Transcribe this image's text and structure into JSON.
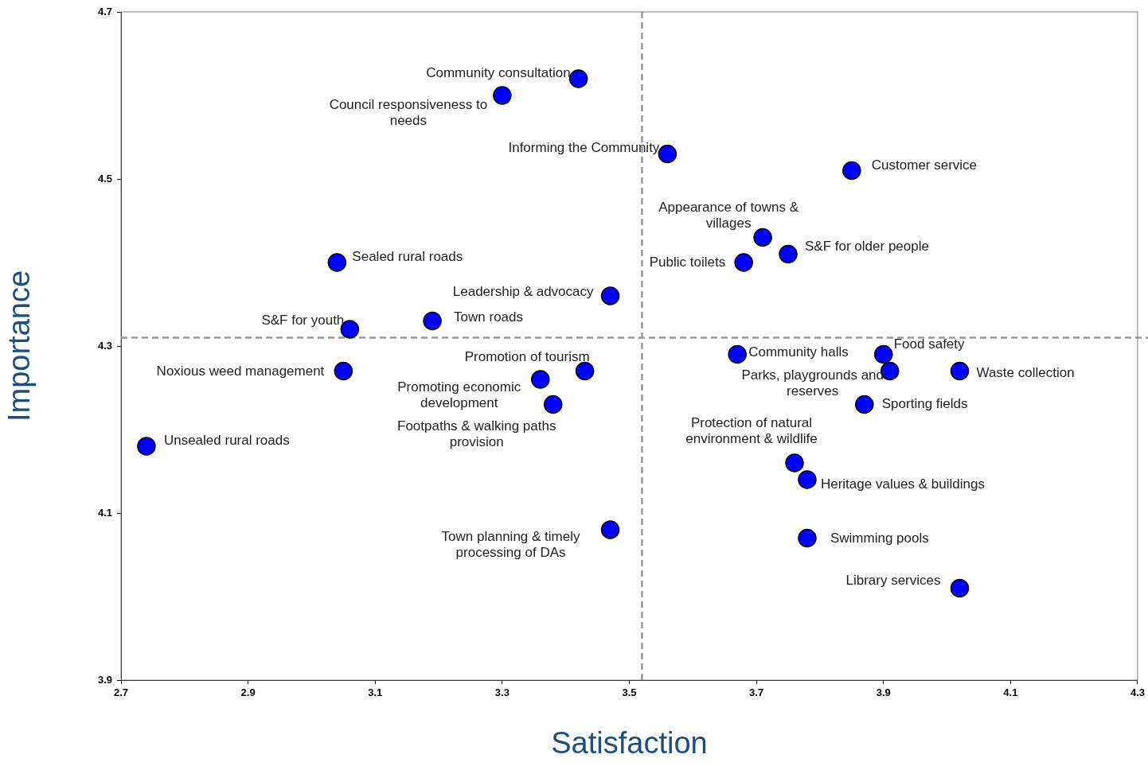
{
  "chart_data": {
    "type": "scatter",
    "xlabel": "Satisfaction",
    "ylabel": "Importance",
    "xlim": [
      2.7,
      4.3
    ],
    "xticks": [
      2.7,
      2.9,
      3.1,
      3.3,
      3.5,
      3.7,
      3.9,
      4.1,
      4.3
    ],
    "ylim": [
      3.9,
      4.7
    ],
    "yticks": [
      3.9,
      4.1,
      4.3,
      4.5,
      4.7
    ],
    "grid": false,
    "legend": false,
    "marker": "circle",
    "series": [
      {
        "color": "#0000ff",
        "x": [
          3.42,
          3.3,
          3.56,
          3.85,
          3.71,
          3.75,
          3.68,
          3.04,
          3.47,
          3.06,
          3.19,
          3.05,
          3.43,
          3.36,
          3.38,
          2.74,
          3.47,
          3.67,
          3.9,
          3.91,
          4.02,
          3.87,
          3.76,
          3.78,
          3.78,
          4.02
        ],
        "values": [
          4.62,
          4.6,
          4.53,
          4.51,
          4.43,
          4.41,
          4.4,
          4.4,
          4.36,
          4.32,
          4.33,
          4.27,
          4.27,
          4.26,
          4.23,
          4.18,
          4.08,
          4.29,
          4.29,
          4.27,
          4.27,
          4.23,
          4.16,
          4.14,
          4.07,
          4.01
        ]
      }
    ],
    "ref_lines": [
      {
        "axis": "x",
        "value": 3.52,
        "color": "#999999",
        "line_style": "dashed"
      },
      {
        "axis": "y",
        "value": 4.31,
        "color": "#999999",
        "line_style": "dashed"
      }
    ],
    "annotations": [
      {
        "text": "Community consultation",
        "x": 3.42,
        "y": 4.62
      },
      {
        "text": "Council responsiveness to needs",
        "x": 3.3,
        "y": 4.6
      },
      {
        "text": "Informing the Community",
        "x": 3.56,
        "y": 4.53
      },
      {
        "text": "Customer service",
        "x": 3.85,
        "y": 4.51
      },
      {
        "text": "Appearance of towns & villages",
        "x": 3.71,
        "y": 4.43
      },
      {
        "text": "S&F for older people",
        "x": 3.75,
        "y": 4.41
      },
      {
        "text": "Public toilets",
        "x": 3.68,
        "y": 4.4
      },
      {
        "text": "Sealed rural roads",
        "x": 3.04,
        "y": 4.4
      },
      {
        "text": "Leadership & advocacy",
        "x": 3.47,
        "y": 4.36
      },
      {
        "text": "S&F for youth",
        "x": 3.06,
        "y": 4.32
      },
      {
        "text": "Town roads",
        "x": 3.19,
        "y": 4.33
      },
      {
        "text": "Noxious weed management",
        "x": 3.05,
        "y": 4.27
      },
      {
        "text": "Promotion of tourism",
        "x": 3.43,
        "y": 4.27
      },
      {
        "text": "Promoting economic development",
        "x": 3.36,
        "y": 4.26
      },
      {
        "text": "Footpaths & walking paths provision",
        "x": 3.38,
        "y": 4.23
      },
      {
        "text": "Unsealed rural roads",
        "x": 2.74,
        "y": 4.18
      },
      {
        "text": "Town planning & timely processing of DAs",
        "x": 3.47,
        "y": 4.08
      },
      {
        "text": "Community halls",
        "x": 3.67,
        "y": 4.29
      },
      {
        "text": "Food safety",
        "x": 3.9,
        "y": 4.29
      },
      {
        "text": "Parks, playgrounds and reserves",
        "x": 3.91,
        "y": 4.27
      },
      {
        "text": "Waste collection",
        "x": 4.02,
        "y": 4.27
      },
      {
        "text": "Sporting fields",
        "x": 3.87,
        "y": 4.23
      },
      {
        "text": "Protection of natural environment & wildlife",
        "x": 3.76,
        "y": 4.16
      },
      {
        "text": "Heritage values & buildings",
        "x": 3.78,
        "y": 4.14
      },
      {
        "text": "Swimming pools",
        "x": 3.78,
        "y": 4.07
      },
      {
        "text": "Library services",
        "x": 4.02,
        "y": 4.01
      }
    ]
  }
}
